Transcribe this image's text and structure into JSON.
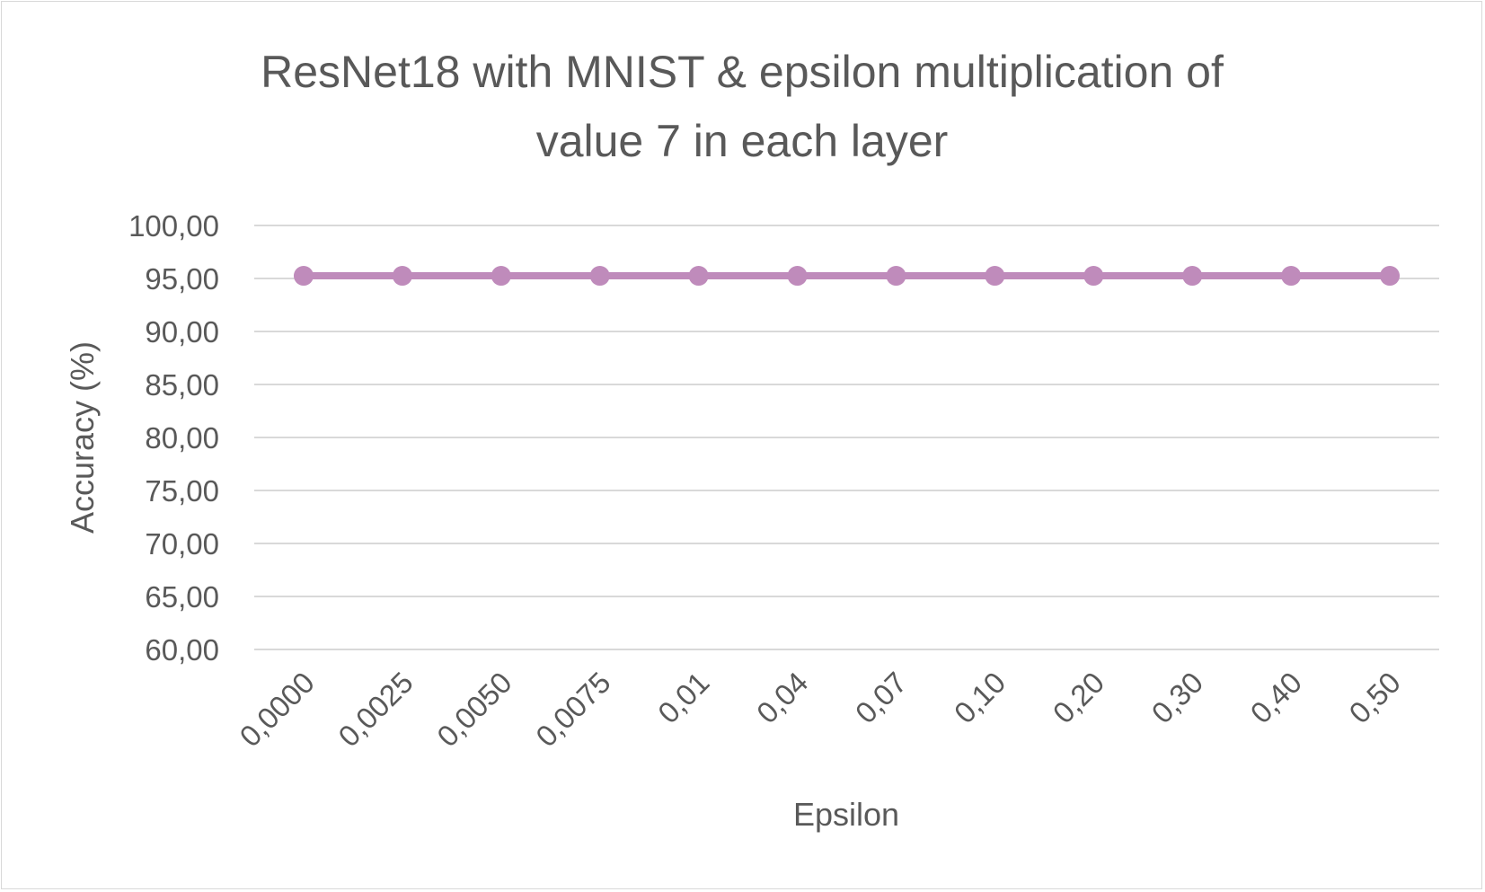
{
  "chart_data": {
    "type": "line",
    "title_lines": [
      "ResNet18 with MNIST & epsilon multiplication of",
      "value 7 in each layer"
    ],
    "xlabel": "Epsilon",
    "ylabel": "Accuracy (%)",
    "categories": [
      "0,0000",
      "0,0025",
      "0,0050",
      "0,0075",
      "0,01",
      "0,04",
      "0,07",
      "0,10",
      "0,20",
      "0,30",
      "0,40",
      "0,50"
    ],
    "series": [
      {
        "values": [
          95.25,
          95.25,
          95.25,
          95.25,
          95.25,
          95.25,
          95.25,
          95.25,
          95.25,
          95.25,
          95.25,
          95.25
        ],
        "color": "#bf8bbb"
      }
    ],
    "ylim": [
      60,
      100
    ],
    "ytick_values": [
      60,
      65,
      70,
      75,
      80,
      85,
      90,
      95,
      100
    ],
    "ytick_labels": [
      "60,00",
      "65,00",
      "70,00",
      "75,00",
      "80,00",
      "85,00",
      "90,00",
      "95,00",
      "100,00"
    ],
    "grid": true,
    "legend": "none"
  }
}
